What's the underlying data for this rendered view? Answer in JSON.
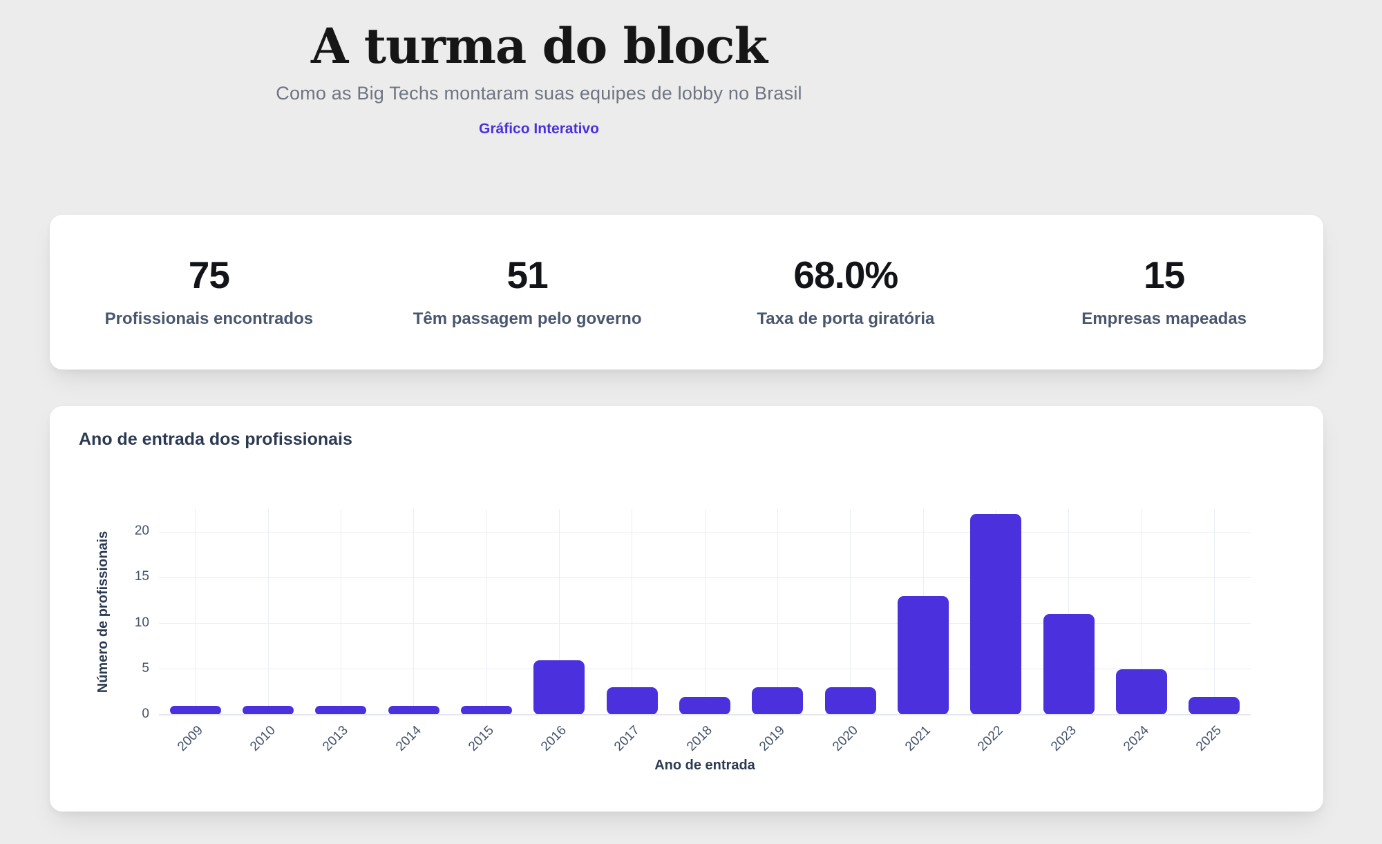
{
  "header": {
    "title": "A turma do block",
    "subtitle": "Como as Big Techs montaram suas equipes de lobby no Brasil",
    "link_label": "Gráfico Interativo"
  },
  "colors": {
    "background": "#ececec",
    "card": "#ffffff",
    "accent": "#4b31dd",
    "bar": "#4b31dd",
    "gridline": "#e9edf5",
    "axis_text": "#44516b",
    "axis_title": "#2b3a52"
  },
  "stats": [
    {
      "value": "75",
      "label": "Profissionais encontrados"
    },
    {
      "value": "51",
      "label": "Têm passagem pelo governo"
    },
    {
      "value": "68.0%",
      "label": "Taxa de porta giratória"
    },
    {
      "value": "15",
      "label": "Empresas mapeadas"
    }
  ],
  "chart_data": {
    "type": "bar",
    "title": "Ano de entrada dos profissionais",
    "categories": [
      "2009",
      "2010",
      "2013",
      "2014",
      "2015",
      "2016",
      "2017",
      "2018",
      "2019",
      "2020",
      "2021",
      "2022",
      "2023",
      "2024",
      "2025"
    ],
    "values": [
      1,
      1,
      1,
      1,
      1,
      6,
      3,
      2,
      3,
      3,
      13,
      22,
      11,
      5,
      2
    ],
    "xlabel": "Ano de entrada",
    "ylabel": "Número de profissionais",
    "ylim": [
      0,
      22.5
    ],
    "yticks": [
      0,
      5,
      10,
      15,
      20
    ],
    "grid": true,
    "legend": false,
    "bar_color": "#4b31dd"
  }
}
